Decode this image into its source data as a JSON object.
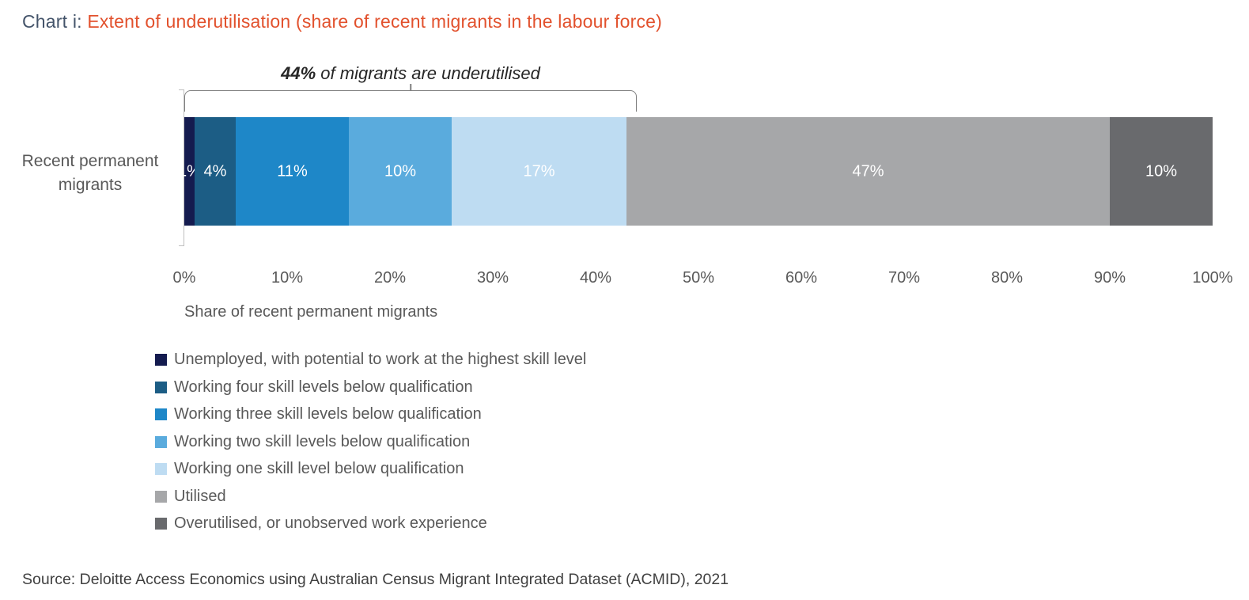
{
  "title": {
    "prefix": "Chart i: ",
    "main": "Extent of underutilisation (share of recent migrants in the labour force)"
  },
  "annotation": {
    "bold": "44%",
    "rest": " of migrants are underutilised",
    "span_pct": 44
  },
  "chart_data": {
    "type": "bar",
    "orientation": "horizontal-stacked",
    "category": "Recent permanent migrants",
    "series": [
      {
        "name": "Unemployed, with potential to work at the highest skill level",
        "value": 1,
        "label": "1%",
        "color": "#141b4f"
      },
      {
        "name": "Working four skill levels below qualification",
        "value": 4,
        "label": "4%",
        "color": "#1c5d85"
      },
      {
        "name": "Working three skill levels below qualification",
        "value": 11,
        "label": "11%",
        "color": "#1e87c8"
      },
      {
        "name": "Working two skill levels below qualification",
        "value": 10,
        "label": "10%",
        "color": "#5aabdd"
      },
      {
        "name": "Working one skill level below qualification",
        "value": 17,
        "label": "17%",
        "color": "#bedcf2"
      },
      {
        "name": "Utilised",
        "value": 47,
        "label": "47%",
        "color": "#a6a7a9"
      },
      {
        "name": "Overutilised, or unobserved work experience",
        "value": 10,
        "label": "10%",
        "color": "#696a6d"
      }
    ],
    "x_ticks": [
      "0%",
      "10%",
      "20%",
      "30%",
      "40%",
      "50%",
      "60%",
      "70%",
      "80%",
      "90%",
      "100%"
    ],
    "xlabel": "Share of recent permanent migrants",
    "xlim": [
      0,
      100
    ],
    "legend_position": "bottom-left",
    "grid": false
  },
  "source": "Source: Deloitte Access Economics using Australian Census Migrant Integrated Dataset (ACMID), 2021"
}
